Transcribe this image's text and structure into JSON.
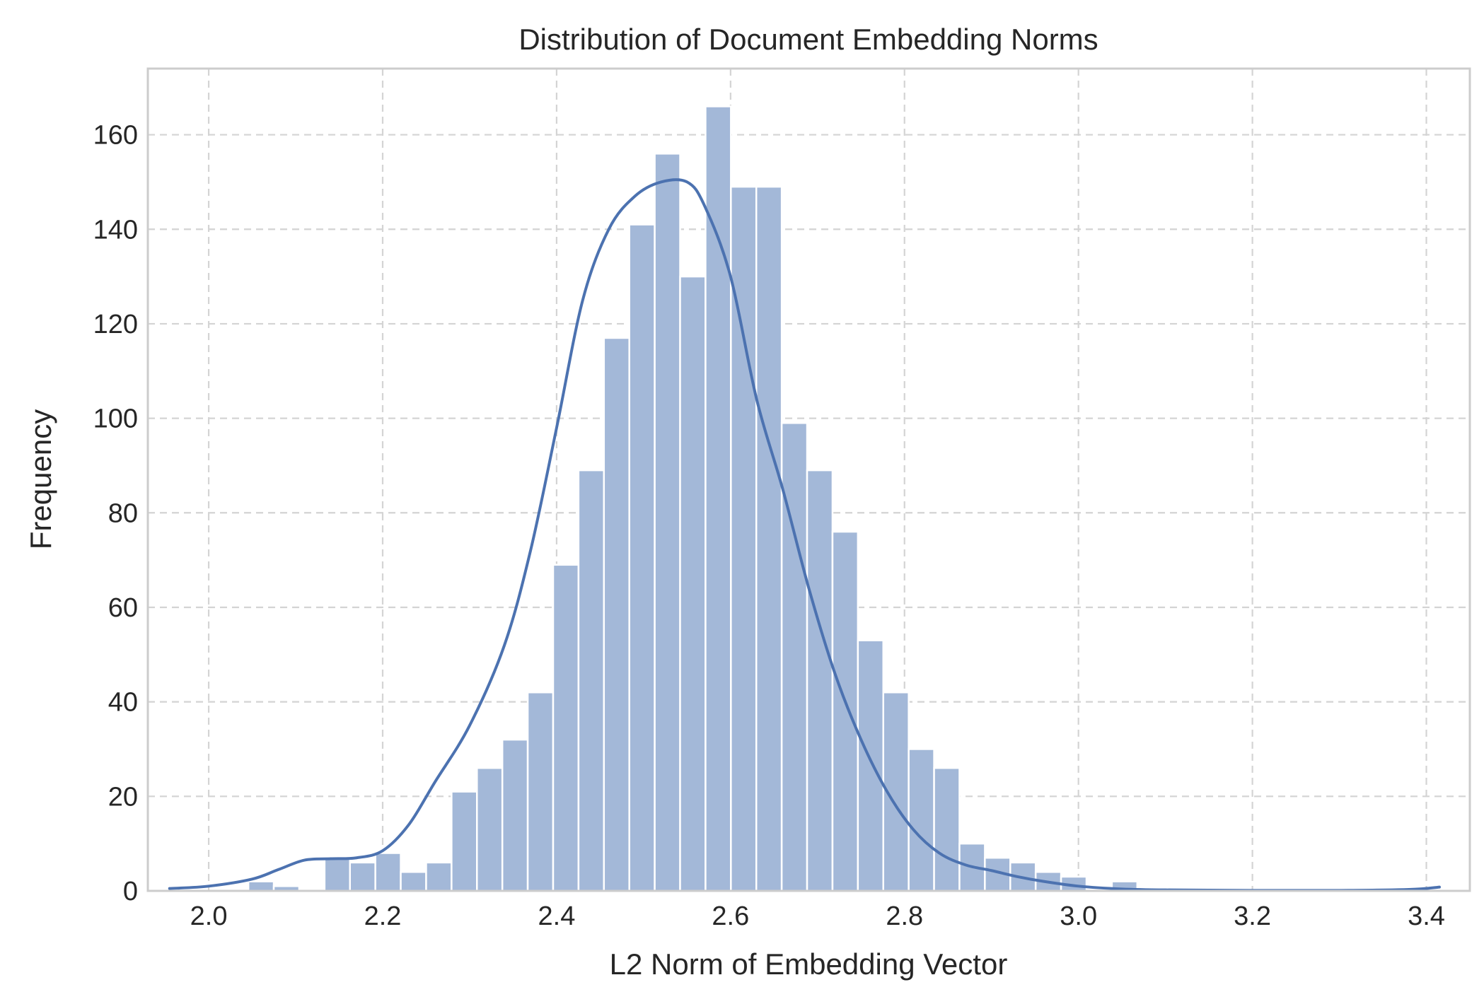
{
  "chart_data": {
    "type": "bar",
    "subtype": "histogram-with-kde",
    "title": "Distribution of Document Embedding Norms",
    "xlabel": "L2 Norm of Embedding Vector",
    "ylabel": "Frequency",
    "xlim": [
      1.93,
      3.45
    ],
    "ylim": [
      0,
      174
    ],
    "xticks": [
      2.0,
      2.2,
      2.4,
      2.6,
      2.8,
      3.0,
      3.2,
      3.4
    ],
    "xtick_labels": [
      "2.0",
      "2.2",
      "2.4",
      "2.6",
      "2.8",
      "3.0",
      "3.2",
      "3.4"
    ],
    "yticks": [
      0,
      20,
      40,
      60,
      80,
      100,
      120,
      140,
      160
    ],
    "ytick_labels": [
      "0",
      "20",
      "40",
      "60",
      "80",
      "100",
      "120",
      "140",
      "160"
    ],
    "grid": true,
    "grid_style": "dashed",
    "bin_width": 0.0292,
    "bin_edges_start": 1.958,
    "counts": [
      0,
      0,
      0,
      2,
      1,
      0,
      7,
      6,
      8,
      4,
      6,
      21,
      26,
      32,
      42,
      69,
      89,
      117,
      141,
      156,
      130,
      166,
      149,
      149,
      99,
      89,
      76,
      53,
      42,
      30,
      26,
      10,
      7,
      6,
      4,
      3,
      0,
      2,
      0,
      0,
      0,
      0,
      0,
      0,
      0,
      0,
      0,
      0,
      0,
      0
    ],
    "kde": {
      "x": [
        1.955,
        2.0,
        2.05,
        2.08,
        2.11,
        2.14,
        2.17,
        2.2,
        2.23,
        2.26,
        2.3,
        2.34,
        2.37,
        2.4,
        2.43,
        2.46,
        2.49,
        2.52,
        2.55,
        2.57,
        2.6,
        2.63,
        2.66,
        2.69,
        2.72,
        2.75,
        2.78,
        2.81,
        2.84,
        2.87,
        2.9,
        2.93,
        2.96,
        3.0,
        3.05,
        3.1,
        3.2,
        3.3,
        3.38,
        3.415
      ],
      "y": [
        0.5,
        1.0,
        2.5,
        4.5,
        6.5,
        6.8,
        7.0,
        8.5,
        14,
        23,
        35,
        52,
        72,
        98,
        125,
        140,
        147,
        150,
        150,
        145,
        130,
        104,
        85,
        64,
        46,
        32,
        21,
        13,
        8,
        5.5,
        4.3,
        3.0,
        2.0,
        1.0,
        0.4,
        0.2,
        0.1,
        0.1,
        0.3,
        0.8
      ]
    },
    "bar_color": "#a3b8d8",
    "line_color": "#4c72b0"
  }
}
